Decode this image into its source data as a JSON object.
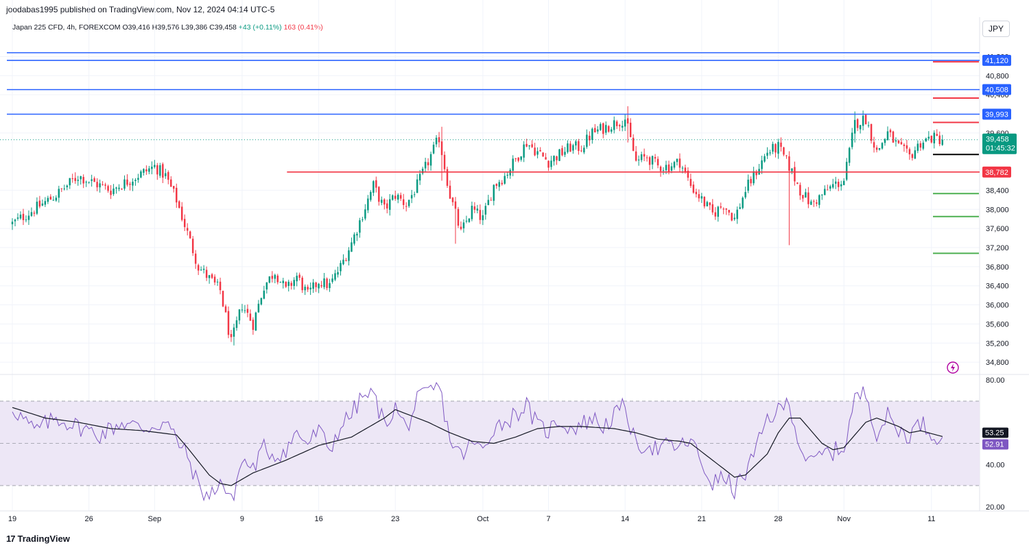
{
  "header": {
    "published": "joodabas1995 published on TradingView.com, Nov 12, 2024 04:14 UTC-5",
    "symbol_line": "Japan 225 CFD, 4h, FOREXCOM",
    "ohlc": "O39,416  H39,576  L39,386  C39,458",
    "change_points": "+43 (+0.11%)",
    "change_extra": "163 (0.41%)",
    "currency": "JPY"
  },
  "branding": {
    "logo_text": "TradingView",
    "logo_mark": "17"
  },
  "colors": {
    "up": "#089981",
    "down": "#f23645",
    "blue_level": "#2962ff",
    "red_level": "#f23645",
    "green_level": "#4caf50",
    "rsi": "#7e57c2",
    "rsi_band": "#ede7f6",
    "rsi_ma": "#131722"
  },
  "chart_data": [
    {
      "type": "candlestick",
      "title": "Japan 225 CFD, 4h, FOREXCOM",
      "ylim": [
        34500,
        41350
      ],
      "y_ticks": [
        "41,200",
        "40,800",
        "40,400",
        "39,600",
        "38,400",
        "38,000",
        "37,600",
        "37,200",
        "36,800",
        "36,400",
        "36,000",
        "35,600",
        "35,200",
        "34,800"
      ],
      "y_tick_values": [
        41200,
        40800,
        40400,
        39600,
        38400,
        38000,
        37600,
        37200,
        36800,
        36400,
        36000,
        35600,
        35200,
        34800
      ],
      "x_ticks": [
        "19",
        "26",
        "Sep",
        "9",
        "16",
        "23",
        "Oct",
        "7",
        "14",
        "21",
        "28",
        "Nov",
        "11"
      ],
      "x_tick_days": [
        0,
        7,
        13,
        21,
        28,
        35,
        43,
        49,
        56,
        63,
        70,
        76,
        84
      ],
      "last_day": 85,
      "path_keypoints": [
        [
          0,
          37700
        ],
        [
          4,
          38300
        ],
        [
          6,
          38700
        ],
        [
          9,
          38400
        ],
        [
          13,
          38900
        ],
        [
          14,
          38700
        ],
        [
          15,
          38200
        ],
        [
          17,
          36800
        ],
        [
          19,
          36300
        ],
        [
          20,
          35200
        ],
        [
          21,
          36000
        ],
        [
          22,
          35600
        ],
        [
          23,
          36400
        ],
        [
          24,
          36700
        ],
        [
          25,
          36300
        ],
        [
          26,
          36600
        ],
        [
          27,
          36200
        ],
        [
          28,
          36500
        ],
        [
          29,
          36400
        ],
        [
          30,
          36800
        ],
        [
          31,
          37300
        ],
        [
          32,
          37900
        ],
        [
          33,
          38500
        ],
        [
          34,
          38000
        ],
        [
          35,
          38300
        ],
        [
          36,
          38100
        ],
        [
          37,
          38500
        ],
        [
          38,
          39000
        ],
        [
          39,
          39500
        ],
        [
          40,
          38300
        ],
        [
          41,
          37500
        ],
        [
          42,
          38000
        ],
        [
          43,
          37800
        ],
        [
          44,
          38500
        ],
        [
          45,
          38700
        ],
        [
          47,
          39400
        ],
        [
          48,
          39200
        ],
        [
          49,
          39000
        ],
        [
          51,
          39300
        ],
        [
          52,
          39300
        ],
        [
          53,
          39600
        ],
        [
          54,
          39700
        ],
        [
          55,
          39800
        ],
        [
          56,
          39900
        ],
        [
          57,
          39000
        ],
        [
          58,
          39100
        ],
        [
          59,
          38900
        ],
        [
          60,
          38900
        ],
        [
          61,
          39000
        ],
        [
          62,
          38500
        ],
        [
          63,
          38200
        ],
        [
          64,
          37900
        ],
        [
          65,
          38100
        ],
        [
          66,
          37800
        ],
        [
          67,
          38400
        ],
        [
          68,
          38800
        ],
        [
          69,
          39200
        ],
        [
          70,
          39300
        ],
        [
          71,
          38900
        ],
        [
          72,
          38400
        ],
        [
          73,
          38100
        ],
        [
          74,
          38300
        ],
        [
          75,
          38500
        ],
        [
          76,
          38600
        ],
        [
          77,
          39800
        ],
        [
          78,
          39900
        ],
        [
          79,
          39200
        ],
        [
          80,
          39600
        ],
        [
          81,
          39300
        ],
        [
          82,
          39100
        ],
        [
          83,
          39400
        ],
        [
          84,
          39500
        ],
        [
          85,
          39458
        ]
      ],
      "extremes": [
        {
          "day": 20.3,
          "high": 35500,
          "low": 35150
        },
        {
          "day": 39.3,
          "high": 39730,
          "low": 38600
        },
        {
          "day": 40.6,
          "high": 38100,
          "low": 37280
        },
        {
          "day": 56.3,
          "high": 40160,
          "low": 39400
        },
        {
          "day": 71.1,
          "high": 38500,
          "low": 37250
        },
        {
          "day": 77.1,
          "high": 40050,
          "low": 39400
        }
      ],
      "last_price": "39,458",
      "last_price_value": 39458,
      "countdown": "01:45:32",
      "levels": [
        {
          "label": "",
          "value": 41280,
          "color": "blue",
          "span": "full"
        },
        {
          "label": "41,120",
          "value": 41120,
          "color": "blue",
          "span": "full"
        },
        {
          "label": "40,508",
          "value": 40508,
          "color": "blue",
          "span": "full"
        },
        {
          "label": "39,993",
          "value": 39993,
          "color": "blue",
          "span": "full"
        },
        {
          "label": "38,782",
          "value": 38782,
          "color": "red",
          "span": "from-mid-sep"
        }
      ],
      "short_marks": [
        {
          "value": 41090,
          "color": "red"
        },
        {
          "value": 40330,
          "color": "red"
        },
        {
          "value": 39820,
          "color": "red"
        },
        {
          "value": 39150,
          "color": "black"
        },
        {
          "value": 38330,
          "color": "green"
        },
        {
          "value": 37850,
          "color": "green"
        },
        {
          "value": 37080,
          "color": "green"
        }
      ]
    },
    {
      "type": "line",
      "title": "RSI",
      "ylim": [
        18,
        82
      ],
      "y_ticks": [
        "80.00",
        "40.00",
        "20.00"
      ],
      "y_tick_values": [
        80,
        40,
        20
      ],
      "bands": [
        70,
        30
      ],
      "rsi_value": "52.91",
      "ma_value": "53.25",
      "rsi_keypoints": [
        [
          0,
          67
        ],
        [
          2,
          56
        ],
        [
          4,
          62
        ],
        [
          6,
          58
        ],
        [
          8,
          54
        ],
        [
          10,
          60
        ],
        [
          12,
          57
        ],
        [
          14,
          60
        ],
        [
          15,
          52
        ],
        [
          16,
          44
        ],
        [
          17,
          30
        ],
        [
          18,
          24
        ],
        [
          19,
          33
        ],
        [
          20,
          22
        ],
        [
          21,
          42
        ],
        [
          22,
          38
        ],
        [
          23,
          48
        ],
        [
          24,
          44
        ],
        [
          25,
          47
        ],
        [
          26,
          55
        ],
        [
          27,
          50
        ],
        [
          28,
          56
        ],
        [
          29,
          47
        ],
        [
          30,
          58
        ],
        [
          31,
          64
        ],
        [
          32,
          72
        ],
        [
          33,
          73
        ],
        [
          34,
          59
        ],
        [
          35,
          67
        ],
        [
          36,
          57
        ],
        [
          37,
          70
        ],
        [
          38,
          74
        ],
        [
          39,
          77
        ],
        [
          40,
          52
        ],
        [
          41,
          44
        ],
        [
          42,
          50
        ],
        [
          43,
          47
        ],
        [
          44,
          58
        ],
        [
          45,
          60
        ],
        [
          46,
          64
        ],
        [
          47,
          68
        ],
        [
          48,
          58
        ],
        [
          49,
          56
        ],
        [
          50,
          61
        ],
        [
          51,
          57
        ],
        [
          52,
          59
        ],
        [
          53,
          62
        ],
        [
          54,
          58
        ],
        [
          55,
          63
        ],
        [
          56,
          68
        ],
        [
          57,
          48
        ],
        [
          58,
          50
        ],
        [
          59,
          47
        ],
        [
          60,
          49
        ],
        [
          61,
          48
        ],
        [
          62,
          52
        ],
        [
          63,
          40
        ],
        [
          64,
          31
        ],
        [
          65,
          34
        ],
        [
          66,
          28
        ],
        [
          67,
          36
        ],
        [
          68,
          47
        ],
        [
          69,
          62
        ],
        [
          70,
          65
        ],
        [
          71,
          70
        ],
        [
          72,
          48
        ],
        [
          73,
          40
        ],
        [
          74,
          45
        ],
        [
          75,
          46
        ],
        [
          76,
          48
        ],
        [
          77,
          71
        ],
        [
          78,
          74
        ],
        [
          79,
          55
        ],
        [
          80,
          63
        ],
        [
          81,
          56
        ],
        [
          82,
          54
        ],
        [
          83,
          60
        ],
        [
          84,
          55
        ],
        [
          85,
          52.9
        ]
      ],
      "ma_keypoints": [
        [
          0,
          67
        ],
        [
          3,
          62
        ],
        [
          6,
          60
        ],
        [
          9,
          57
        ],
        [
          12,
          56
        ],
        [
          15,
          54
        ],
        [
          16,
          48
        ],
        [
          18,
          35
        ],
        [
          19,
          31
        ],
        [
          20,
          30
        ],
        [
          22,
          36
        ],
        [
          25,
          42
        ],
        [
          28,
          49
        ],
        [
          31,
          53
        ],
        [
          34,
          62
        ],
        [
          35,
          66
        ],
        [
          36,
          64
        ],
        [
          38,
          60
        ],
        [
          40,
          55
        ],
        [
          42,
          51
        ],
        [
          44,
          50
        ],
        [
          46,
          53
        ],
        [
          48,
          57
        ],
        [
          50,
          58
        ],
        [
          52,
          58
        ],
        [
          55,
          57
        ],
        [
          57,
          55
        ],
        [
          59,
          52
        ],
        [
          61,
          51
        ],
        [
          62,
          50
        ],
        [
          64,
          42
        ],
        [
          66,
          34
        ],
        [
          67,
          35
        ],
        [
          69,
          45
        ],
        [
          70,
          55
        ],
        [
          71,
          62
        ],
        [
          72,
          62
        ],
        [
          73,
          56
        ],
        [
          74,
          50
        ],
        [
          75,
          47
        ],
        [
          76,
          48
        ],
        [
          77,
          54
        ],
        [
          78,
          60
        ],
        [
          79,
          62
        ],
        [
          81,
          58
        ],
        [
          82,
          55
        ],
        [
          83,
          56
        ],
        [
          85,
          53.25
        ]
      ]
    }
  ]
}
